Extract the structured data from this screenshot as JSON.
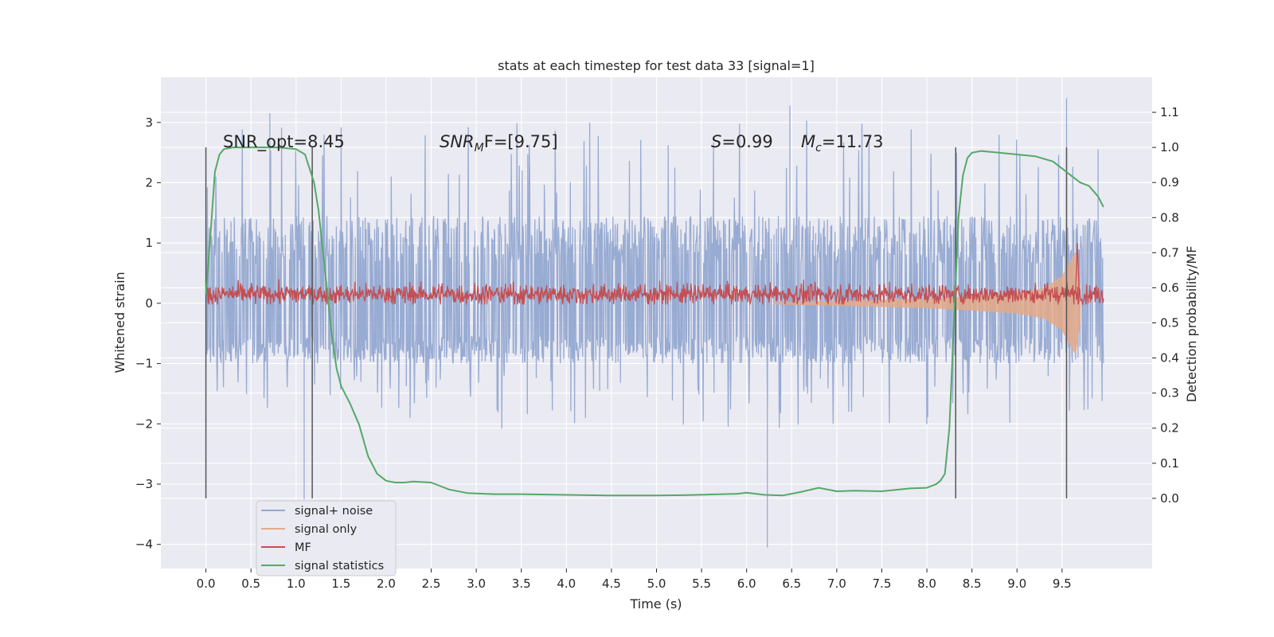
{
  "chart_data": {
    "type": "line",
    "title": "stats at each timestep for test data 33 [signal=1]",
    "xlabel": "Time (s)",
    "ylabel": "Whitened strain",
    "ylabel_right": "Detection probability/MF",
    "xlim": [
      -0.5,
      10.5
    ],
    "ylim": [
      -4.4,
      3.75
    ],
    "ylim_right": [
      -0.2,
      1.2
    ],
    "x_ticks": [
      "0.0",
      "0.5",
      "1.0",
      "1.5",
      "2.0",
      "2.5",
      "3.0",
      "3.5",
      "4.0",
      "4.5",
      "5.0",
      "5.5",
      "6.0",
      "6.5",
      "7.0",
      "7.5",
      "8.0",
      "8.5",
      "9.0",
      "9.5"
    ],
    "y_ticks": [
      "3",
      "2",
      "1",
      "0",
      "−1",
      "−2",
      "−3",
      "−4"
    ],
    "y_right_ticks": [
      "0.0",
      "0.1",
      "0.2",
      "0.3",
      "0.4",
      "0.5",
      "0.6",
      "0.7",
      "0.8",
      "0.9",
      "1.0",
      "1.1"
    ],
    "grid": true,
    "legend_position": "bottom-left",
    "annotations": {
      "snr_opt": "SNR_opt=8.45",
      "snr_mf_a": "SNR",
      "snr_mf_sub": "M",
      "snr_mf_b": "F=[9.75]",
      "s_a": "S",
      "s_b": "=0.99",
      "mc_a": "M",
      "mc_sub": "c",
      "mc_b": "=11.73"
    },
    "vertical_markers_x": [
      0.0,
      1.18,
      8.32,
      9.55
    ],
    "series": [
      {
        "name": "signal+ noise",
        "color": "#94a8d0",
        "x_range": [
          0.0,
          9.96
        ],
        "y_band_typical": [
          -1.0,
          1.45
        ],
        "y_extremes": [
          -4.05,
          3.4
        ]
      },
      {
        "name": "signal only",
        "color": "#e4a988",
        "x_range": [
          6.3,
          9.7
        ],
        "envelope_x": [
          6.3,
          7.0,
          7.5,
          8.0,
          8.5,
          9.0,
          9.3,
          9.5,
          9.65,
          9.7
        ],
        "envelope_amp": [
          0.02,
          0.04,
          0.06,
          0.08,
          0.12,
          0.17,
          0.25,
          0.45,
          0.85,
          0.3
        ]
      },
      {
        "name": "MF",
        "color": "#c44e52",
        "x_range": [
          0.0,
          9.96
        ],
        "y_band_typical": [
          0.0,
          0.3
        ],
        "peak": {
          "x": 9.67,
          "y": 1.0
        }
      },
      {
        "name": "signal statistics",
        "color": "#55a868",
        "axis": "right",
        "x": [
          0.0,
          0.05,
          0.1,
          0.15,
          0.2,
          0.3,
          0.5,
          0.8,
          1.0,
          1.1,
          1.2,
          1.25,
          1.3,
          1.35,
          1.4,
          1.45,
          1.5,
          1.6,
          1.7,
          1.8,
          1.9,
          2.0,
          2.1,
          2.2,
          2.3,
          2.5,
          2.7,
          2.9,
          3.2,
          3.5,
          4.0,
          4.5,
          5.0,
          5.3,
          5.6,
          5.9,
          6.0,
          6.2,
          6.4,
          6.6,
          6.8,
          7.0,
          7.2,
          7.5,
          7.8,
          8.0,
          8.1,
          8.15,
          8.2,
          8.25,
          8.3,
          8.35,
          8.4,
          8.45,
          8.5,
          8.6,
          8.8,
          9.0,
          9.2,
          9.4,
          9.5,
          9.6,
          9.7,
          9.8,
          9.9,
          9.96
        ],
        "y": [
          0.58,
          0.75,
          0.93,
          0.98,
          0.995,
          1.0,
          1.0,
          1.0,
          0.995,
          0.98,
          0.9,
          0.82,
          0.7,
          0.58,
          0.46,
          0.37,
          0.32,
          0.27,
          0.21,
          0.12,
          0.07,
          0.05,
          0.045,
          0.045,
          0.048,
          0.045,
          0.025,
          0.015,
          0.012,
          0.012,
          0.01,
          0.008,
          0.008,
          0.009,
          0.011,
          0.013,
          0.016,
          0.01,
          0.008,
          0.018,
          0.03,
          0.02,
          0.022,
          0.02,
          0.028,
          0.03,
          0.04,
          0.05,
          0.07,
          0.2,
          0.5,
          0.8,
          0.92,
          0.97,
          0.985,
          0.99,
          0.985,
          0.98,
          0.975,
          0.96,
          0.94,
          0.92,
          0.9,
          0.89,
          0.86,
          0.83
        ]
      }
    ]
  }
}
